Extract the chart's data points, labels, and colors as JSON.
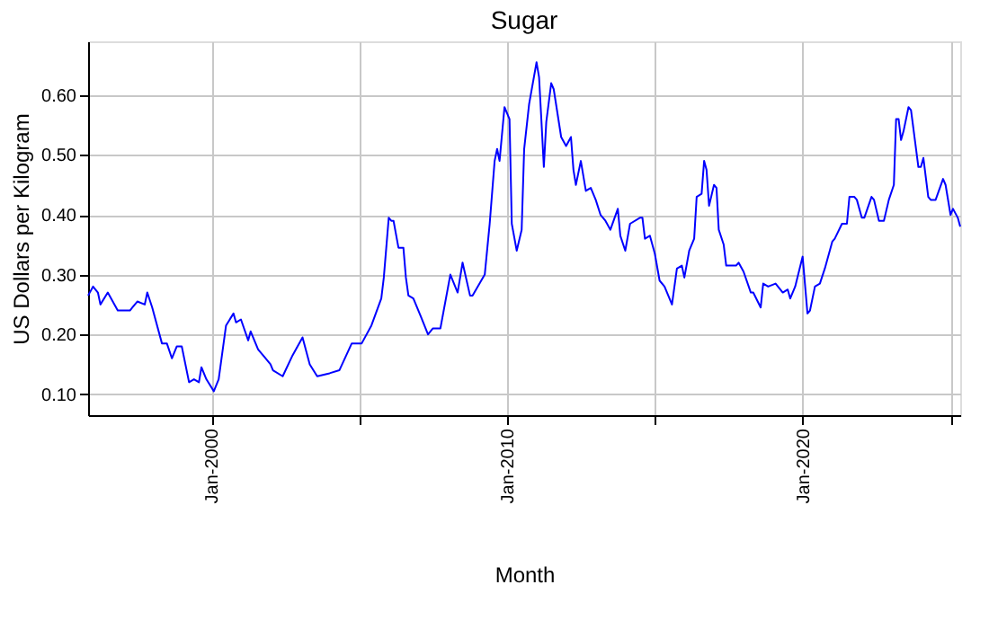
{
  "chart_data": {
    "type": "line",
    "title": "Sugar",
    "xlabel": "Month",
    "ylabel": "US Dollars per Kilogram",
    "x": [
      "1995-11",
      "1996-01",
      "1996-03",
      "1996-04",
      "1996-07",
      "1996-11",
      "1997-04",
      "1997-05",
      "1997-07",
      "1997-10",
      "1997-11",
      "1998-01",
      "1998-05",
      "1998-07",
      "1998-09",
      "1998-11",
      "1999-01",
      "1999-04",
      "1999-06",
      "1999-08",
      "1999-09",
      "1999-11",
      "2000-02",
      "2000-04",
      "2000-07",
      "2000-10",
      "2000-11",
      "2001-01",
      "2001-04",
      "2001-05",
      "2001-08",
      "2001-10",
      "2002-01",
      "2002-02",
      "2002-06",
      "2002-10",
      "2003-02",
      "2003-05",
      "2003-08",
      "2004-01",
      "2004-05",
      "2004-10",
      "2005-02",
      "2005-06",
      "2005-10",
      "2005-11",
      "2006-01",
      "2006-02",
      "2006-03",
      "2006-05",
      "2006-07",
      "2006-08",
      "2006-09",
      "2006-11",
      "2007-02",
      "2007-05",
      "2007-07",
      "2007-10",
      "2008-02",
      "2008-05",
      "2008-07",
      "2008-10",
      "2008-11",
      "2009-04",
      "2009-06",
      "2009-08",
      "2009-09",
      "2009-10",
      "2009-12",
      "2010-02",
      "2010-03",
      "2010-05",
      "2010-07",
      "2010-08",
      "2010-10",
      "2011-01",
      "2011-02",
      "2011-03",
      "2011-04",
      "2011-05",
      "2011-07",
      "2011-08",
      "2011-11",
      "2012-01",
      "2012-03",
      "2012-04",
      "2012-05",
      "2012-07",
      "2012-09",
      "2012-11",
      "2013-01",
      "2013-03",
      "2013-05",
      "2013-07",
      "2013-10",
      "2013-11",
      "2014-01",
      "2014-03",
      "2014-07",
      "2014-08",
      "2014-09",
      "2014-11",
      "2015-01",
      "2015-03",
      "2015-05",
      "2015-08",
      "2015-10",
      "2015-12",
      "2016-01",
      "2016-03",
      "2016-05",
      "2016-06",
      "2016-08",
      "2016-09",
      "2016-10",
      "2016-11",
      "2017-01",
      "2017-02",
      "2017-03",
      "2017-05",
      "2017-06",
      "2017-10",
      "2017-11",
      "2018-01",
      "2018-04",
      "2018-05",
      "2018-08",
      "2018-09",
      "2018-11",
      "2019-02",
      "2019-05",
      "2019-07",
      "2019-08",
      "2019-10",
      "2020-01",
      "2020-03",
      "2020-04",
      "2020-06",
      "2020-08",
      "2020-10",
      "2021-01",
      "2021-02",
      "2021-05",
      "2021-07",
      "2021-08",
      "2021-10",
      "2021-11",
      "2022-01",
      "2022-02",
      "2022-05",
      "2022-06",
      "2022-08",
      "2022-10",
      "2022-12",
      "2023-02",
      "2023-03",
      "2023-04",
      "2023-05",
      "2023-06",
      "2023-08",
      "2023-09",
      "2023-12",
      "2024-01",
      "2024-02",
      "2024-04",
      "2024-05",
      "2024-07",
      "2024-10",
      "2024-11",
      "2025-01",
      "2025-02",
      "2025-04",
      "2025-05"
    ],
    "series": [
      {
        "color": "#0000ff",
        "values": [
          0.265,
          0.28,
          0.27,
          0.25,
          0.27,
          0.24,
          0.24,
          0.245,
          0.255,
          0.25,
          0.27,
          0.245,
          0.185,
          0.185,
          0.16,
          0.18,
          0.18,
          0.12,
          0.125,
          0.12,
          0.145,
          0.125,
          0.105,
          0.125,
          0.215,
          0.235,
          0.22,
          0.225,
          0.19,
          0.205,
          0.175,
          0.165,
          0.15,
          0.14,
          0.13,
          0.165,
          0.195,
          0.15,
          0.13,
          0.135,
          0.14,
          0.185,
          0.185,
          0.215,
          0.26,
          0.295,
          0.395,
          0.39,
          0.39,
          0.345,
          0.345,
          0.295,
          0.265,
          0.26,
          0.23,
          0.2,
          0.21,
          0.21,
          0.3,
          0.27,
          0.32,
          0.265,
          0.265,
          0.3,
          0.385,
          0.49,
          0.51,
          0.49,
          0.58,
          0.56,
          0.385,
          0.34,
          0.375,
          0.51,
          0.585,
          0.655,
          0.63,
          0.56,
          0.48,
          0.555,
          0.62,
          0.61,
          0.53,
          0.515,
          0.53,
          0.475,
          0.45,
          0.49,
          0.44,
          0.445,
          0.425,
          0.4,
          0.39,
          0.375,
          0.41,
          0.365,
          0.34,
          0.385,
          0.395,
          0.395,
          0.36,
          0.365,
          0.335,
          0.29,
          0.28,
          0.25,
          0.31,
          0.315,
          0.295,
          0.34,
          0.36,
          0.43,
          0.435,
          0.49,
          0.475,
          0.415,
          0.45,
          0.445,
          0.375,
          0.35,
          0.315,
          0.315,
          0.32,
          0.305,
          0.27,
          0.27,
          0.245,
          0.285,
          0.28,
          0.285,
          0.27,
          0.275,
          0.26,
          0.28,
          0.33,
          0.235,
          0.24,
          0.28,
          0.285,
          0.31,
          0.355,
          0.36,
          0.385,
          0.385,
          0.43,
          0.43,
          0.425,
          0.395,
          0.395,
          0.43,
          0.425,
          0.39,
          0.39,
          0.425,
          0.45,
          0.56,
          0.56,
          0.525,
          0.54,
          0.58,
          0.575,
          0.48,
          0.48,
          0.495,
          0.43,
          0.425,
          0.425,
          0.46,
          0.45,
          0.4,
          0.41,
          0.395,
          0.38
        ]
      }
    ],
    "xlim": [
      "1995-11",
      "2025-05"
    ],
    "xticks": [
      {
        "value": "2000-01",
        "label": "Jan-2000"
      },
      {
        "value": "2005-01",
        "label": null
      },
      {
        "value": "2010-01",
        "label": "Jan-2010"
      },
      {
        "value": "2015-01",
        "label": null
      },
      {
        "value": "2020-01",
        "label": "Jan-2020"
      },
      {
        "value": "2025-01",
        "label": null
      }
    ],
    "ylim": [
      0.065,
      0.69
    ],
    "yticks": [
      {
        "value": 0.1,
        "label": "0.10"
      },
      {
        "value": 0.2,
        "label": "0.20"
      },
      {
        "value": 0.3,
        "label": "0.30"
      },
      {
        "value": 0.4,
        "label": "0.40"
      },
      {
        "value": 0.5,
        "label": "0.50"
      },
      {
        "value": 0.6,
        "label": "0.60"
      }
    ],
    "grid": true,
    "marker": "none",
    "line_style": "solid"
  }
}
